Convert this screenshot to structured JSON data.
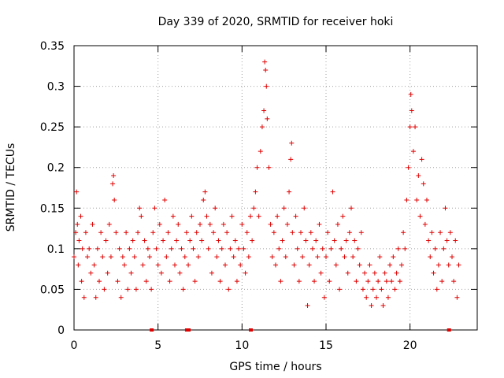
{
  "chart_data": {
    "type": "scatter",
    "title": "Day 339 of 2020, SRMTID for receiver hoki",
    "xlabel": "GPS time / hours",
    "ylabel": "SRMTID / TECUs",
    "xlim": [
      0,
      24
    ],
    "ylim": [
      0,
      0.35
    ],
    "grid": true,
    "x_ticks": [
      0,
      5,
      10,
      15,
      20
    ],
    "x_tick_labels": [
      "0",
      "5",
      "10",
      "15",
      "20"
    ],
    "y_ticks": [
      0,
      0.05,
      0.1,
      0.15,
      0.2,
      0.25,
      0.3,
      0.35
    ],
    "y_tick_labels": [
      "0",
      "0.05",
      "0.1",
      "0.15",
      "0.2",
      "0.25",
      "0.3",
      "0.35"
    ],
    "marker": "+",
    "color": "#e00000",
    "series": [
      {
        "name": "SRMTID",
        "points": [
          [
            0.0,
            0.09
          ],
          [
            0.1,
            0.12
          ],
          [
            0.15,
            0.17
          ],
          [
            0.2,
            0.13
          ],
          [
            0.25,
            0.08
          ],
          [
            0.3,
            0.11
          ],
          [
            0.4,
            0.14
          ],
          [
            0.45,
            0.06
          ],
          [
            0.5,
            0.1
          ],
          [
            0.6,
            0.04
          ],
          [
            0.7,
            0.12
          ],
          [
            0.8,
            0.09
          ],
          [
            0.9,
            0.1
          ],
          [
            1.0,
            0.07
          ],
          [
            1.1,
            0.13
          ],
          [
            1.2,
            0.08
          ],
          [
            1.3,
            0.04
          ],
          [
            1.4,
            0.1
          ],
          [
            1.5,
            0.06
          ],
          [
            1.6,
            0.12
          ],
          [
            1.7,
            0.09
          ],
          [
            1.8,
            0.05
          ],
          [
            1.9,
            0.11
          ],
          [
            2.0,
            0.07
          ],
          [
            2.1,
            0.13
          ],
          [
            2.2,
            0.09
          ],
          [
            2.3,
            0.18
          ],
          [
            2.35,
            0.19
          ],
          [
            2.4,
            0.16
          ],
          [
            2.5,
            0.12
          ],
          [
            2.6,
            0.06
          ],
          [
            2.7,
            0.1
          ],
          [
            2.8,
            0.04
          ],
          [
            2.9,
            0.09
          ],
          [
            3.0,
            0.08
          ],
          [
            3.1,
            0.12
          ],
          [
            3.2,
            0.05
          ],
          [
            3.3,
            0.1
          ],
          [
            3.4,
            0.07
          ],
          [
            3.5,
            0.11
          ],
          [
            3.6,
            0.09
          ],
          [
            3.7,
            0.05
          ],
          [
            3.8,
            0.12
          ],
          [
            3.9,
            0.15
          ],
          [
            4.0,
            0.14
          ],
          [
            4.1,
            0.08
          ],
          [
            4.2,
            0.11
          ],
          [
            4.3,
            0.06
          ],
          [
            4.4,
            0.1
          ],
          [
            4.5,
            0.09
          ],
          [
            4.6,
            0.05
          ],
          [
            4.7,
            0.12
          ],
          [
            4.8,
            0.15
          ],
          [
            4.9,
            0.1
          ],
          [
            5.0,
            0.08
          ],
          [
            5.1,
            0.13
          ],
          [
            5.2,
            0.07
          ],
          [
            5.3,
            0.11
          ],
          [
            5.4,
            0.16
          ],
          [
            5.5,
            0.09
          ],
          [
            5.6,
            0.12
          ],
          [
            5.7,
            0.06
          ],
          [
            5.8,
            0.1
          ],
          [
            5.9,
            0.14
          ],
          [
            6.0,
            0.08
          ],
          [
            6.1,
            0.11
          ],
          [
            6.2,
            0.13
          ],
          [
            6.3,
            0.07
          ],
          [
            6.4,
            0.1
          ],
          [
            6.5,
            0.05
          ],
          [
            6.6,
            0.09
          ],
          [
            6.7,
            0.12
          ],
          [
            6.8,
            0.08
          ],
          [
            6.9,
            0.11
          ],
          [
            7.0,
            0.14
          ],
          [
            7.1,
            0.1
          ],
          [
            7.2,
            0.06
          ],
          [
            7.3,
            0.12
          ],
          [
            7.4,
            0.09
          ],
          [
            7.5,
            0.13
          ],
          [
            7.6,
            0.11
          ],
          [
            7.7,
            0.16
          ],
          [
            7.8,
            0.17
          ],
          [
            7.9,
            0.14
          ],
          [
            8.0,
            0.1
          ],
          [
            8.1,
            0.13
          ],
          [
            8.2,
            0.07
          ],
          [
            8.3,
            0.12
          ],
          [
            8.4,
            0.15
          ],
          [
            8.5,
            0.09
          ],
          [
            8.6,
            0.11
          ],
          [
            8.7,
            0.06
          ],
          [
            8.8,
            0.1
          ],
          [
            8.9,
            0.13
          ],
          [
            9.0,
            0.08
          ],
          [
            9.1,
            0.12
          ],
          [
            9.2,
            0.05
          ],
          [
            9.3,
            0.1
          ],
          [
            9.4,
            0.14
          ],
          [
            9.5,
            0.09
          ],
          [
            9.6,
            0.11
          ],
          [
            9.7,
            0.06
          ],
          [
            9.8,
            0.1
          ],
          [
            9.9,
            0.08
          ],
          [
            10.0,
            0.13
          ],
          [
            10.1,
            0.1
          ],
          [
            10.2,
            0.07
          ],
          [
            10.3,
            0.12
          ],
          [
            10.4,
            0.09
          ],
          [
            10.5,
            0.14
          ],
          [
            10.6,
            0.11
          ],
          [
            10.7,
            0.15
          ],
          [
            10.8,
            0.17
          ],
          [
            10.9,
            0.2
          ],
          [
            11.0,
            0.14
          ],
          [
            11.1,
            0.22
          ],
          [
            11.2,
            0.25
          ],
          [
            11.3,
            0.27
          ],
          [
            11.35,
            0.33
          ],
          [
            11.4,
            0.32
          ],
          [
            11.45,
            0.3
          ],
          [
            11.5,
            0.26
          ],
          [
            11.6,
            0.2
          ],
          [
            11.7,
            0.13
          ],
          [
            11.8,
            0.09
          ],
          [
            11.9,
            0.12
          ],
          [
            12.0,
            0.08
          ],
          [
            12.1,
            0.14
          ],
          [
            12.2,
            0.1
          ],
          [
            12.3,
            0.06
          ],
          [
            12.4,
            0.11
          ],
          [
            12.5,
            0.15
          ],
          [
            12.6,
            0.09
          ],
          [
            12.7,
            0.13
          ],
          [
            12.8,
            0.17
          ],
          [
            12.9,
            0.21
          ],
          [
            12.95,
            0.23
          ],
          [
            13.0,
            0.12
          ],
          [
            13.1,
            0.08
          ],
          [
            13.2,
            0.14
          ],
          [
            13.3,
            0.1
          ],
          [
            13.4,
            0.06
          ],
          [
            13.5,
            0.12
          ],
          [
            13.6,
            0.09
          ],
          [
            13.7,
            0.15
          ],
          [
            13.8,
            0.11
          ],
          [
            13.9,
            0.03
          ],
          [
            14.0,
            0.08
          ],
          [
            14.1,
            0.12
          ],
          [
            14.2,
            0.1
          ],
          [
            14.3,
            0.06
          ],
          [
            14.4,
            0.11
          ],
          [
            14.5,
            0.09
          ],
          [
            14.6,
            0.13
          ],
          [
            14.7,
            0.07
          ],
          [
            14.8,
            0.1
          ],
          [
            14.9,
            0.04
          ],
          [
            15.0,
            0.09
          ],
          [
            15.1,
            0.12
          ],
          [
            15.2,
            0.06
          ],
          [
            15.3,
            0.1
          ],
          [
            15.4,
            0.17
          ],
          [
            15.5,
            0.11
          ],
          [
            15.6,
            0.08
          ],
          [
            15.7,
            0.13
          ],
          [
            15.8,
            0.05
          ],
          [
            15.9,
            0.1
          ],
          [
            16.0,
            0.14
          ],
          [
            16.1,
            0.09
          ],
          [
            16.2,
            0.11
          ],
          [
            16.3,
            0.07
          ],
          [
            16.4,
            0.12
          ],
          [
            16.5,
            0.15
          ],
          [
            16.6,
            0.09
          ],
          [
            16.7,
            0.11
          ],
          [
            16.8,
            0.06
          ],
          [
            16.9,
            0.1
          ],
          [
            17.0,
            0.08
          ],
          [
            17.1,
            0.12
          ],
          [
            17.2,
            0.05
          ],
          [
            17.3,
            0.07
          ],
          [
            17.4,
            0.04
          ],
          [
            17.5,
            0.06
          ],
          [
            17.6,
            0.08
          ],
          [
            17.7,
            0.03
          ],
          [
            17.8,
            0.05
          ],
          [
            17.9,
            0.07
          ],
          [
            18.0,
            0.04
          ],
          [
            18.1,
            0.06
          ],
          [
            18.2,
            0.09
          ],
          [
            18.3,
            0.05
          ],
          [
            18.4,
            0.03
          ],
          [
            18.5,
            0.07
          ],
          [
            18.6,
            0.06
          ],
          [
            18.7,
            0.04
          ],
          [
            18.8,
            0.08
          ],
          [
            18.9,
            0.06
          ],
          [
            19.0,
            0.09
          ],
          [
            19.1,
            0.05
          ],
          [
            19.2,
            0.07
          ],
          [
            19.3,
            0.1
          ],
          [
            19.4,
            0.06
          ],
          [
            19.5,
            0.08
          ],
          [
            19.6,
            0.12
          ],
          [
            19.7,
            0.1
          ],
          [
            19.8,
            0.16
          ],
          [
            19.9,
            0.2
          ],
          [
            20.0,
            0.25
          ],
          [
            20.05,
            0.29
          ],
          [
            20.1,
            0.27
          ],
          [
            20.2,
            0.22
          ],
          [
            20.3,
            0.25
          ],
          [
            20.4,
            0.16
          ],
          [
            20.5,
            0.19
          ],
          [
            20.6,
            0.14
          ],
          [
            20.7,
            0.21
          ],
          [
            20.8,
            0.18
          ],
          [
            20.9,
            0.13
          ],
          [
            21.0,
            0.16
          ],
          [
            21.1,
            0.11
          ],
          [
            21.2,
            0.09
          ],
          [
            21.3,
            0.12
          ],
          [
            21.4,
            0.07
          ],
          [
            21.5,
            0.1
          ],
          [
            21.6,
            0.05
          ],
          [
            21.7,
            0.08
          ],
          [
            21.8,
            0.12
          ],
          [
            21.9,
            0.06
          ],
          [
            22.0,
            0.1
          ],
          [
            22.1,
            0.15
          ],
          [
            22.2,
            0.11
          ],
          [
            22.3,
            0.08
          ],
          [
            22.4,
            0.12
          ],
          [
            22.5,
            0.09
          ],
          [
            22.6,
            0.06
          ],
          [
            22.7,
            0.11
          ],
          [
            22.8,
            0.04
          ],
          [
            22.9,
            0.08
          ]
        ]
      }
    ],
    "baseline_markers_x": [
      4.6,
      6.7,
      6.8,
      10.5,
      22.3
    ]
  }
}
